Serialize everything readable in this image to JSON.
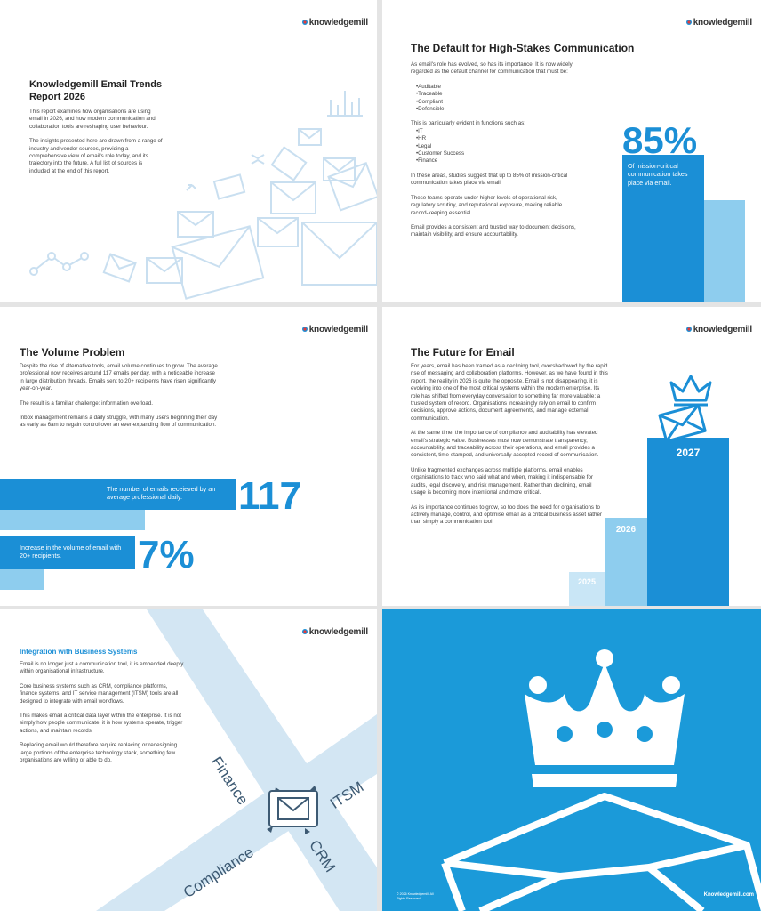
{
  "brand": "knowledgemill",
  "slides": [
    {
      "title": "Knowledgemill Email Trends Report 2026",
      "paragraphs": [
        "This report examines how organisations are using email in 2026, and how modern communication and collaboration tools are reshaping user behaviour.",
        "The insights presented here are drawn from a range of industry and vendor sources, providing a comprehensive view of email's role today, and its trajectory into the future. A full list of sources is included at the end of this report."
      ]
    },
    {
      "title": "The Default for High-Stakes Communication",
      "intro": "As email's role has evolved, so has its importance. It is now widely regarded as the default channel for communication that must be:",
      "list1": [
        "Auditable",
        "Traceable",
        "Compliant",
        "Defensible"
      ],
      "mid": "This is particularly evident in functions such as:",
      "list2": [
        "IT",
        "HR",
        "Legal",
        "Customer Success",
        "Finance"
      ],
      "paragraphs": [
        "In these areas, studies suggest that up to 85% of mission-critical communication takes place via email.",
        "These teams operate under higher levels of operational risk, regulatory scrutiny, and reputational exposure, making reliable record-keeping essential.",
        "Email provides a consistent and trusted way to document decisions, maintain visibility, and ensure accountability."
      ],
      "stat": "85%",
      "stat_caption": "Of mission-critical communication takes place via email."
    },
    {
      "title": "The Volume Problem",
      "paragraphs": [
        "Despite the rise of alternative tools, email volume continues to grow. The average professional now receives around 117 emails per day, with a noticeable increase in large distribution threads. Emails sent to 20+ recipients have risen significantly year-on-year.",
        "The result is a familiar challenge: information overload.",
        "Inbox management remains a daily struggle, with many users beginning their day as early as 6am to regain control over an ever-expanding flow of communication."
      ],
      "stat1": {
        "value": "117",
        "caption": "The number of emails receieved by an average professional daily."
      },
      "stat2": {
        "value": "7%",
        "caption": "Increase in the volume of email with 20+ recipients."
      }
    },
    {
      "title": "The Future for Email",
      "paragraphs": [
        "For years, email has been framed as a declining tool, overshadowed by the rapid rise of messaging and collaboration platforms. However, as we have found in this report, the reality in 2026 is quite the opposite. Email is not disappearing, it is evolving into one of the most critical systems within the modern enterprise. Its role has shifted from everyday conversation to something far more valuable: a trusted system of record. Organisations increasingly rely on email to confirm decisions, approve actions, document agreements, and manage external communication.",
        "At the same time, the importance of compliance and auditability has elevated email's strategic value. Businesses must now demonstrate transparency, accountability, and traceability across their operations, and email provides a consistent, time-stamped, and universally accepted record of communication.",
        "Unlike fragmented exchanges across multiple platforms, email enables organisations to track who said what and when, making it indispensable for audits, legal discovery, and risk management. Rather than declining, email usage is becoming more intentional and more critical.",
        "As its importance continues to grow, so too does the need for organisations to actively manage, control, and optimise email as a critical business asset rather than simply a communication tool."
      ],
      "years": [
        "2025",
        "2026",
        "2027"
      ]
    },
    {
      "title": "Integration with Business Systems",
      "paragraphs": [
        "Email is no longer just a communication tool, it is embedded deeply within organisational infrastructure.",
        "Core business systems such as CRM, compliance platforms, finance systems, and IT service management (ITSM) tools are all designed to integrate with email workflows.",
        "This makes email a critical data layer within the enterprise. It is not simply how people communicate, it is how systems operate, trigger actions, and maintain records.",
        "Replacing email would therefore require replacing or redesigning large portions of the enterprise technology stack, something few organisations are willing or able to do."
      ],
      "labels": [
        "Finance",
        "ITSM",
        "Compliance",
        "CRM"
      ]
    },
    {
      "footer_left": "© 2026 Knowledgemill. All Rights Reserved.",
      "footer_right": "Knowledgemill.com"
    }
  ]
}
